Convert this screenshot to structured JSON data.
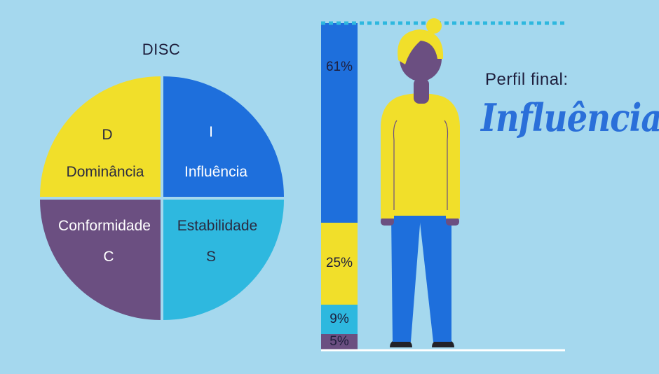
{
  "disc": {
    "title": "DISC",
    "quadrants": [
      {
        "key": "D",
        "letter": "D",
        "name": "Dominância",
        "color": "#f1df2a"
      },
      {
        "key": "I",
        "letter": "I",
        "name": "Influência",
        "color": "#1e6fdc"
      },
      {
        "key": "C",
        "letter": "C",
        "name": "Conformidade",
        "color": "#6b4f81"
      },
      {
        "key": "S",
        "letter": "S",
        "name": "Estabilidade",
        "color": "#2eb8df"
      }
    ]
  },
  "bar": {
    "segments": [
      {
        "label": "61%",
        "value": 61,
        "color": "#1e6fdc"
      },
      {
        "label": "25%",
        "value": 25,
        "color": "#f1df2a"
      },
      {
        "label": "9%",
        "value": 9,
        "color": "#2eb8df"
      },
      {
        "label": "5%",
        "value": 5,
        "color": "#6b4f81"
      }
    ]
  },
  "result": {
    "label": "Perfil final:",
    "value": "Influência"
  },
  "colors": {
    "background": "#a5d8ee",
    "accent": "#2a6fd9",
    "figure_hair": "#f1df2a",
    "figure_skin": "#6b4f81",
    "figure_pants": "#1e6fdc",
    "ground_line": "#ffffff"
  }
}
